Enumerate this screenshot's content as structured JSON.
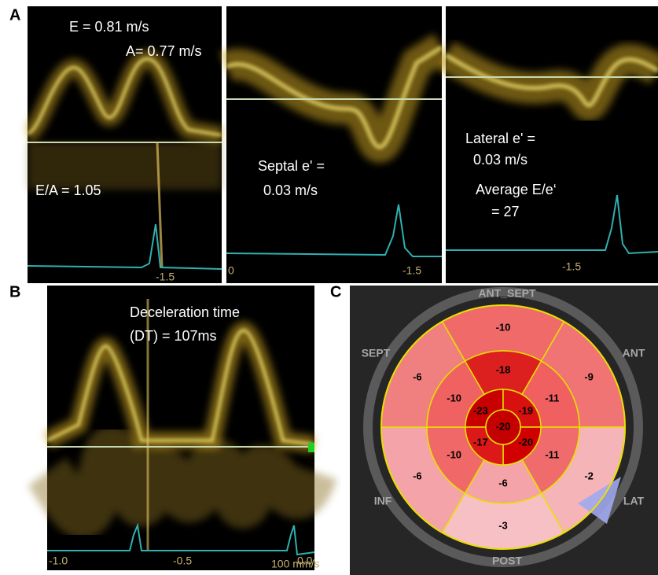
{
  "panel_labels": {
    "a": "A",
    "b": "B",
    "c": "C"
  },
  "mitral_inflow": {
    "e_velocity": "E = 0.81 m/s",
    "a_velocity": "A= 0.77 m/s",
    "e_a_ratio": "E/A = 1.05",
    "scale": "-1.5"
  },
  "septal_tissue": {
    "label": "Septal e' =",
    "value": "0.03 m/s",
    "scale_start": "0",
    "scale_end": "-1.5"
  },
  "lateral_tissue": {
    "label": "Lateral e' =",
    "value": "0.03 m/s",
    "average_label": "Average E/e‘",
    "average_value": "= 27",
    "scale": "-1.5"
  },
  "deceleration": {
    "label": "Deceleration time",
    "value": "(DT) = 107ms",
    "scale": [
      "-1.0",
      "-0.5",
      "0.0"
    ],
    "speed": "100 mm/s"
  },
  "bullseye": {
    "walls": {
      "ant_sept": "ANT_SEPT",
      "ant": "ANT",
      "lat": "LAT",
      "post": "POST",
      "inf": "INF",
      "sept": "SEPT"
    },
    "basal": [
      {
        "value": -10,
        "color": "#f06a6a"
      },
      {
        "value": -9,
        "color": "#f07474"
      },
      {
        "value": -2,
        "color": "#f4b4b8"
      },
      {
        "value": -3,
        "color": "#f6c0c4"
      },
      {
        "value": -6,
        "color": "#f4a4a8"
      },
      {
        "value": -6,
        "color": "#f08080"
      }
    ],
    "mid": [
      {
        "value": -18,
        "color": "#dc2020"
      },
      {
        "value": -11,
        "color": "#f06060"
      },
      {
        "value": -11,
        "color": "#f06c6c"
      },
      {
        "value": -6,
        "color": "#f4a4a8"
      },
      {
        "value": -10,
        "color": "#f06868"
      },
      {
        "value": -10,
        "color": "#f06262"
      }
    ],
    "apical": [
      {
        "value": -23,
        "color": "#c80000"
      },
      {
        "value": -19,
        "color": "#d81010"
      },
      {
        "value": -20,
        "color": "#d00000"
      },
      {
        "value": -17,
        "color": "#dc1818"
      }
    ],
    "apex": {
      "value": -20,
      "color": "#c40000"
    }
  }
}
